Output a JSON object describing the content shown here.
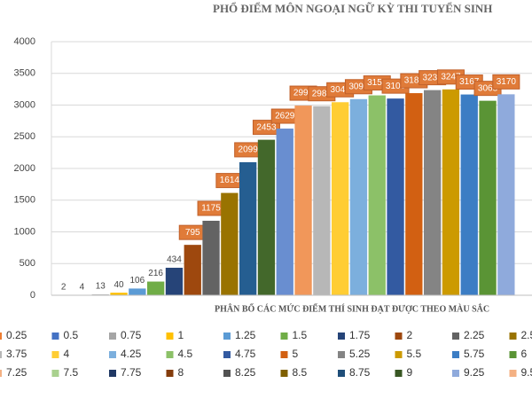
{
  "chart_data": {
    "type": "bar",
    "title": "PHỔ ĐIỂM MÔN NGOẠI NGỮ KỲ THI TUYỂN SINH",
    "x_label": "PHÂN BỔ CÁC MỨC ĐIỂM THÍ SINH ĐẠT ĐƯỢC THEO MÀU SẮC",
    "values": [
      2,
      4,
      13,
      40,
      106,
      216,
      434,
      795,
      1175,
      1614,
      2099,
      2453,
      2629,
      2992,
      2983,
      3045,
      3094,
      3153,
      3103,
      3188,
      3236,
      3247,
      3167,
      3068,
      3170
    ],
    "colors": [
      "#ed7d31",
      "#4472c4",
      "#a5a5a5",
      "#ffc000",
      "#5b9bd5",
      "#70ad47",
      "#264478",
      "#9e480e",
      "#636363",
      "#997300",
      "#255e91",
      "#43682b",
      "#698ed0",
      "#f1975a",
      "#b7b7b7",
      "#ffcd33",
      "#7cafdd",
      "#8cc168",
      "#335aa1",
      "#d26012",
      "#848484",
      "#cc9a00",
      "#3c7dc4",
      "#5a9435",
      "#8faadc"
    ],
    "ylim": [
      0,
      4000
    ],
    "yticks": [
      0,
      500,
      1000,
      1500,
      2000,
      2500,
      3000,
      3500,
      4000
    ],
    "grid": true,
    "legend": [
      {
        "label": "0.25",
        "color": "#ed7d31"
      },
      {
        "label": "0.5",
        "color": "#4472c4"
      },
      {
        "label": "0.75",
        "color": "#a5a5a5"
      },
      {
        "label": "1",
        "color": "#ffc000"
      },
      {
        "label": "1.25",
        "color": "#5b9bd5"
      },
      {
        "label": "1.5",
        "color": "#70ad47"
      },
      {
        "label": "1.75",
        "color": "#264478"
      },
      {
        "label": "2",
        "color": "#9e480e"
      },
      {
        "label": "2.25",
        "color": "#636363"
      },
      {
        "label": "2.5",
        "color": "#997300"
      },
      {
        "label": "3.75",
        "color": "#b7b7b7"
      },
      {
        "label": "4",
        "color": "#ffcd33"
      },
      {
        "label": "4.25",
        "color": "#7cafdd"
      },
      {
        "label": "4.5",
        "color": "#8cc168"
      },
      {
        "label": "4.75",
        "color": "#335aa1"
      },
      {
        "label": "5",
        "color": "#d26012"
      },
      {
        "label": "5.25",
        "color": "#848484"
      },
      {
        "label": "5.5",
        "color": "#cc9a00"
      },
      {
        "label": "5.75",
        "color": "#3c7dc4"
      },
      {
        "label": "6",
        "color": "#5a9435"
      },
      {
        "label": "7.25",
        "color": "#f4b183"
      },
      {
        "label": "7.5",
        "color": "#a9d18e"
      },
      {
        "label": "7.75",
        "color": "#203864"
      },
      {
        "label": "8",
        "color": "#843c0c"
      },
      {
        "label": "8.25",
        "color": "#525252"
      },
      {
        "label": "8.5",
        "color": "#7f6000"
      },
      {
        "label": "8.75",
        "color": "#1f4e79"
      },
      {
        "label": "9",
        "color": "#385723"
      },
      {
        "label": "9.25",
        "color": "#8faadc"
      },
      {
        "label": "9.5",
        "color": "#f4b183"
      }
    ]
  }
}
